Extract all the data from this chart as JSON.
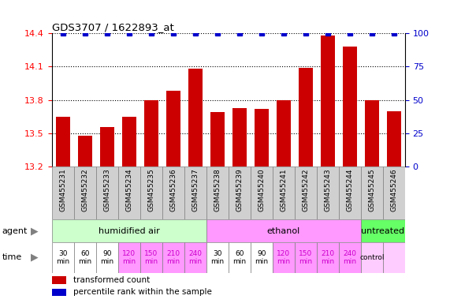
{
  "title": "GDS3707 / 1622893_at",
  "samples": [
    "GSM455231",
    "GSM455232",
    "GSM455233",
    "GSM455234",
    "GSM455235",
    "GSM455236",
    "GSM455237",
    "GSM455238",
    "GSM455239",
    "GSM455240",
    "GSM455241",
    "GSM455242",
    "GSM455243",
    "GSM455244",
    "GSM455245",
    "GSM455246"
  ],
  "bar_values": [
    13.65,
    13.48,
    13.56,
    13.65,
    13.8,
    13.88,
    14.08,
    13.69,
    13.73,
    13.72,
    13.8,
    14.09,
    14.38,
    14.28,
    13.8,
    13.7
  ],
  "percentile_values": [
    100,
    100,
    100,
    100,
    100,
    100,
    100,
    100,
    100,
    100,
    100,
    100,
    100,
    100,
    100,
    100
  ],
  "bar_color": "#cc0000",
  "percentile_color": "#0000cc",
  "ylim_left": [
    13.2,
    14.4
  ],
  "yticks_left": [
    13.2,
    13.5,
    13.8,
    14.1,
    14.4
  ],
  "ylim_right": [
    0,
    100
  ],
  "yticks_right": [
    0,
    25,
    50,
    75,
    100
  ],
  "agent_groups": [
    {
      "label": "humidified air",
      "start": 0,
      "end": 7,
      "color": "#ccffcc"
    },
    {
      "label": "ethanol",
      "start": 7,
      "end": 14,
      "color": "#ff99ff"
    },
    {
      "label": "untreated",
      "start": 14,
      "end": 16,
      "color": "#66ff66"
    }
  ],
  "time_labels": [
    "30\nmin",
    "60\nmin",
    "90\nmin",
    "120\nmin",
    "150\nmin",
    "210\nmin",
    "240\nmin",
    "30\nmin",
    "60\nmin",
    "90\nmin",
    "120\nmin",
    "150\nmin",
    "210\nmin",
    "240\nmin",
    "control",
    ""
  ],
  "time_colors": [
    "#ffffff",
    "#ffffff",
    "#ffffff",
    "#ff99ff",
    "#ff99ff",
    "#ff99ff",
    "#ff99ff",
    "#ffffff",
    "#ffffff",
    "#ffffff",
    "#ff99ff",
    "#ff99ff",
    "#ff99ff",
    "#ff99ff",
    "#ffccff",
    "#ffccff"
  ],
  "time_text_colors": [
    "#000000",
    "#000000",
    "#000000",
    "#cc00cc",
    "#cc00cc",
    "#cc00cc",
    "#cc00cc",
    "#000000",
    "#000000",
    "#000000",
    "#cc00cc",
    "#cc00cc",
    "#cc00cc",
    "#cc00cc",
    "#000000",
    "#000000"
  ],
  "legend_items": [
    {
      "label": "transformed count",
      "color": "#cc0000"
    },
    {
      "label": "percentile rank within the sample",
      "color": "#0000cc"
    }
  ],
  "sample_bg": "#d0d0d0",
  "sample_text_color": "#000000"
}
